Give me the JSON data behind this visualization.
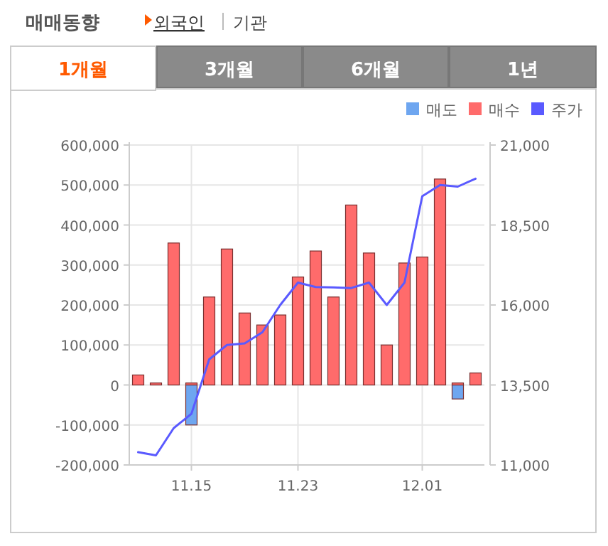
{
  "chart_data": {
    "type": "bar",
    "title": "매매동향",
    "subtitle": "외국인",
    "annotations": [
      "기관",
      "1개월",
      "3개월",
      "6개월",
      "1년"
    ],
    "categories": [
      null,
      null,
      null,
      "11.15",
      null,
      null,
      null,
      null,
      null,
      "11.23",
      null,
      null,
      null,
      null,
      null,
      null,
      "12.01",
      null,
      null,
      null
    ],
    "series": [
      {
        "name": "매도",
        "color": "#6ea6f0",
        "values": [
          null,
          null,
          null,
          -100000,
          null,
          null,
          null,
          null,
          null,
          null,
          null,
          null,
          null,
          null,
          null,
          null,
          null,
          null,
          -35000,
          null
        ]
      },
      {
        "name": "매수",
        "color": "#ff6b6b",
        "values": [
          25000,
          5000,
          355000,
          5000,
          220000,
          340000,
          180000,
          150000,
          175000,
          270000,
          335000,
          220000,
          450000,
          330000,
          100000,
          305000,
          320000,
          515000,
          5000,
          30000
        ]
      },
      {
        "name": "주가",
        "type": "line",
        "axis": "y2",
        "color": "#5a5aff",
        "values": [
          11400,
          11300,
          12150,
          12600,
          14300,
          14750,
          14800,
          15150,
          16000,
          16700,
          16560,
          16550,
          16530,
          16700,
          16000,
          16700,
          19400,
          19750,
          19700,
          19950
        ]
      }
    ],
    "ylim": [
      -200000,
      600000
    ],
    "yticks": [
      {
        "value": -200000,
        "label": "-200,000"
      },
      {
        "value": -100000,
        "label": "-100,000"
      },
      0,
      {
        "value": 100000,
        "label": "100,000"
      },
      {
        "value": 200000,
        "label": "200,000"
      },
      {
        "value": 300000,
        "label": "300,000"
      },
      {
        "value": 400000,
        "label": "400,000"
      },
      {
        "value": 500000,
        "label": "500,000"
      },
      {
        "value": 600000,
        "label": "600,000"
      }
    ],
    "y2lim": [
      11000,
      21000
    ],
    "y2ticks": [
      {
        "value": 11000,
        "label": "11,000"
      },
      {
        "value": 13500,
        "label": "13,500"
      },
      {
        "value": 16000,
        "label": "16,000"
      },
      {
        "value": 18500,
        "label": "18,500"
      },
      {
        "value": 21000,
        "label": "21,000"
      }
    ],
    "grid": true,
    "legend": "top right"
  }
}
